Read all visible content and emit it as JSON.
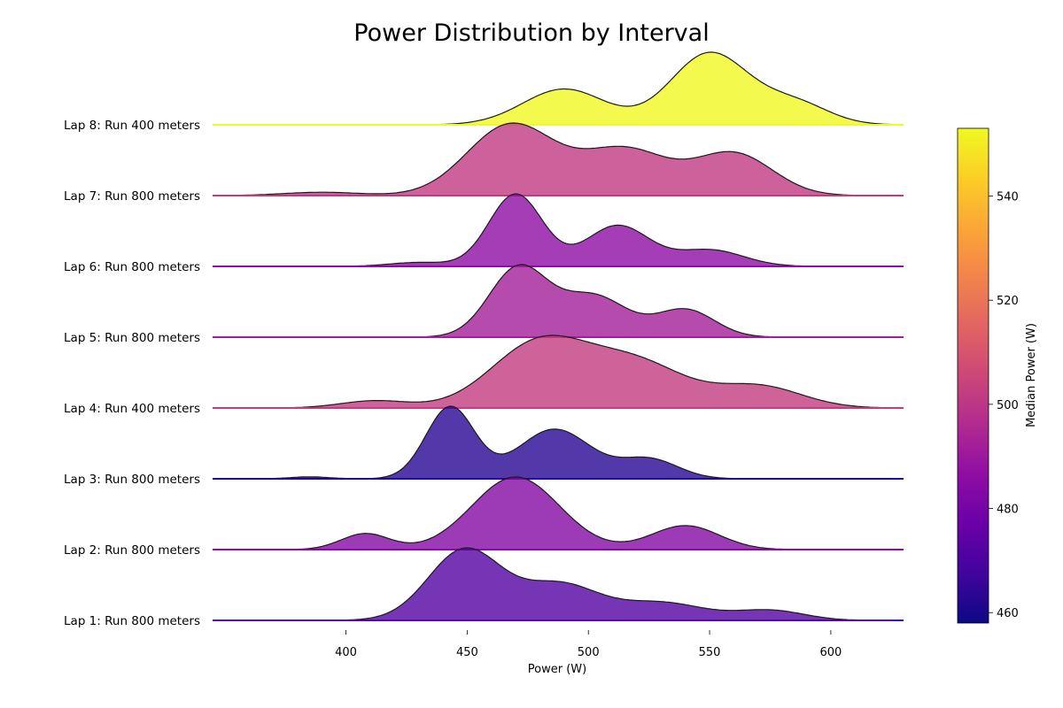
{
  "chart_data": {
    "type": "ridgeline",
    "title": "Power Distribution by Interval",
    "xlabel": "Power (W)",
    "xlim": [
      345,
      630
    ],
    "xticks": [
      400,
      450,
      500,
      550,
      600
    ],
    "colorbar": {
      "label": "Median Power (W)",
      "range": [
        458,
        553
      ],
      "ticks": [
        460,
        480,
        500,
        520,
        540
      ],
      "colormap": "plasma"
    },
    "series": [
      {
        "name": "Lap 1: Run 800 meters",
        "median": 472,
        "peaks": [
          [
            449,
            1.0,
            15
          ],
          [
            488,
            0.5,
            16
          ],
          [
            530,
            0.25,
            18
          ],
          [
            575,
            0.14,
            14
          ]
        ]
      },
      {
        "name": "Lap 2: Run 800 meters",
        "median": 484,
        "peaks": [
          [
            408,
            0.22,
            10
          ],
          [
            470,
            1.0,
            18
          ],
          [
            540,
            0.33,
            14
          ]
        ]
      },
      {
        "name": "Lap 3: Run 800 meters",
        "median": 463,
        "peaks": [
          [
            385,
            0.03,
            8
          ],
          [
            443,
            1.1,
            10
          ],
          [
            486,
            0.76,
            15
          ],
          [
            525,
            0.3,
            12
          ]
        ]
      },
      {
        "name": "Lap 4: Run 400 meters",
        "median": 502,
        "peaks": [
          [
            412,
            0.1,
            14
          ],
          [
            480,
            0.9,
            20
          ],
          [
            520,
            0.6,
            20
          ],
          [
            570,
            0.3,
            18
          ]
        ]
      },
      {
        "name": "Lap 5: Run 800 meters",
        "median": 492,
        "peaks": [
          [
            471,
            1.0,
            12
          ],
          [
            502,
            0.6,
            14
          ],
          [
            540,
            0.4,
            12
          ]
        ]
      },
      {
        "name": "Lap 6: Run 800 meters",
        "median": 486,
        "peaks": [
          [
            430,
            0.06,
            12
          ],
          [
            470,
            1.1,
            11
          ],
          [
            512,
            0.62,
            13
          ],
          [
            550,
            0.25,
            14
          ]
        ]
      },
      {
        "name": "Lap 7: Run 800 meters",
        "median": 501,
        "peaks": [
          [
            390,
            0.04,
            16
          ],
          [
            468,
            0.85,
            18
          ],
          [
            515,
            0.55,
            18
          ],
          [
            560,
            0.5,
            16
          ]
        ]
      },
      {
        "name": "Lap 8: Run 400 meters",
        "median": 553,
        "peaks": [
          [
            490,
            0.5,
            17
          ],
          [
            550,
            1.0,
            16
          ],
          [
            585,
            0.3,
            14
          ]
        ]
      }
    ]
  }
}
